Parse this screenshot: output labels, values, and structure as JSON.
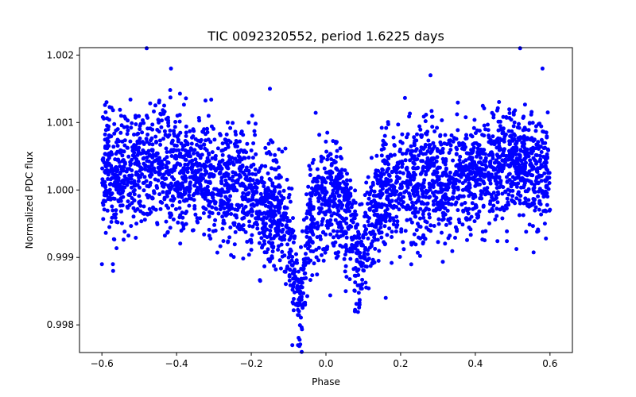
{
  "chart_data": {
    "type": "scatter",
    "title": "TIC 0092320552, period 1.6225 days",
    "xlabel": "Phase",
    "ylabel": "Normalized PDC flux",
    "xlim": [
      -0.66,
      0.66
    ],
    "ylim": [
      0.99759,
      1.00211
    ],
    "xticks": [
      -0.6,
      -0.4,
      -0.2,
      0.0,
      0.2,
      0.4,
      0.6
    ],
    "xtick_labels": [
      "−0.6",
      "−0.4",
      "−0.2",
      "0.0",
      "0.2",
      "0.4",
      "0.6"
    ],
    "yticks": [
      0.998,
      0.999,
      1.0,
      1.001,
      1.002
    ],
    "ytick_labels": [
      "0.998",
      "0.999",
      "1.000",
      "1.001",
      "1.002"
    ],
    "marker_color": "#0000ff",
    "series": [
      {
        "name": "PDC flux",
        "description": "Phase-folded light curve; baseline ~1.0000 with scatter ~0.0005, transit dip centred near phase -0.07 reaching ~0.9976, secondary dip near phase 0.09 reaching ~0.9983",
        "x": [
          -0.6,
          -0.55,
          -0.5,
          -0.45,
          -0.4,
          -0.35,
          -0.3,
          -0.25,
          -0.2,
          -0.15,
          -0.12,
          -0.1,
          -0.09,
          -0.08,
          -0.075,
          -0.07,
          -0.065,
          -0.06,
          -0.05,
          -0.04,
          -0.02,
          0.0,
          0.03,
          0.06,
          0.08,
          0.09,
          0.1,
          0.12,
          0.15,
          0.2,
          0.25,
          0.3,
          0.35,
          0.4,
          0.45,
          0.5,
          0.55,
          0.6
        ],
        "y": [
          1.0003,
          1.0002,
          1.0003,
          1.0004,
          1.0003,
          1.0002,
          1.0001,
          1.0001,
          0.9999,
          0.9998,
          0.9997,
          0.9994,
          0.999,
          0.9986,
          0.9983,
          0.9982,
          0.9984,
          0.9988,
          0.9993,
          0.9996,
          0.9998,
          0.9998,
          0.9999,
          0.9996,
          0.9992,
          0.9988,
          0.9991,
          0.9996,
          0.9999,
          1.0,
          1.0001,
          1.0001,
          1.0002,
          1.0002,
          1.0003,
          1.0004,
          1.0003,
          1.0002
        ],
        "outliers": [
          {
            "x": -0.48,
            "y": 1.0021
          },
          {
            "x": 0.52,
            "y": 1.0021
          },
          {
            "x": -0.415,
            "y": 1.0018
          },
          {
            "x": 0.58,
            "y": 1.0018
          },
          {
            "x": -0.15,
            "y": 1.0015
          },
          {
            "x": 0.28,
            "y": 1.0017
          },
          {
            "x": -0.07,
            "y": 0.99755
          },
          {
            "x": -0.065,
            "y": 0.9976
          },
          {
            "x": -0.075,
            "y": 0.9977
          },
          {
            "x": -0.09,
            "y": 0.9977
          },
          {
            "x": 0.09,
            "y": 0.9983
          },
          {
            "x": 0.16,
            "y": 0.9984
          },
          {
            "x": -0.6,
            "y": 0.9989
          },
          {
            "x": -0.57,
            "y": 0.9988
          }
        ]
      }
    ]
  }
}
